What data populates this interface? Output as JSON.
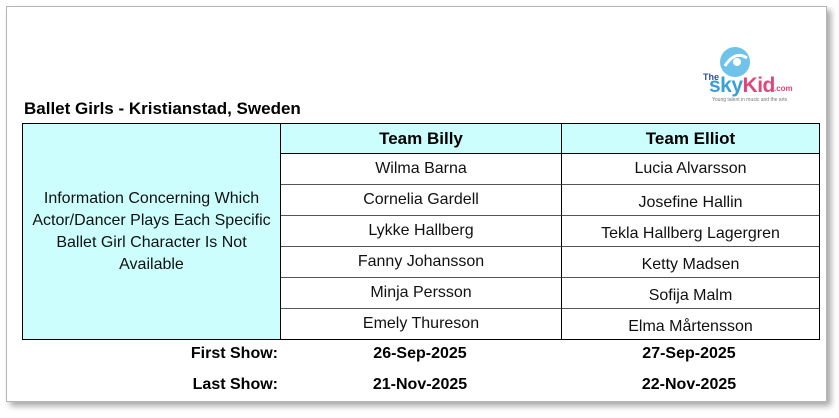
{
  "logo": {
    "prefix": "The",
    "name_a": "sky",
    "name_b": "Kid",
    "suffix": ".com",
    "tagline": "Young talent in music and the arts"
  },
  "title": "Ballet Girls - Kristianstad, Sweden",
  "info_text": "Information Concerning Which Actor/Dancer Plays Each Specific Ballet Girl Character Is Not Available",
  "teams": [
    {
      "header": "Team Billy",
      "members": [
        "Wilma Barna",
        "Cornelia Gardell",
        "Lykke Hallberg",
        "Fanny Johansson",
        "Minja Persson",
        "Emely Thureson"
      ],
      "first_show": "26-Sep-2025",
      "last_show": "21-Nov-2025"
    },
    {
      "header": "Team Elliot",
      "members": [
        "Lucia Alvarsson",
        "Josefine Hallin",
        "Tekla Hallberg Lagergren",
        "Ketty Madsen",
        "Sofija Malm",
        "Elma Mårtensson"
      ],
      "first_show": "27-Sep-2025",
      "last_show": "22-Nov-2025"
    }
  ],
  "first_show_label": "First Show:",
  "last_show_label": "Last Show:"
}
